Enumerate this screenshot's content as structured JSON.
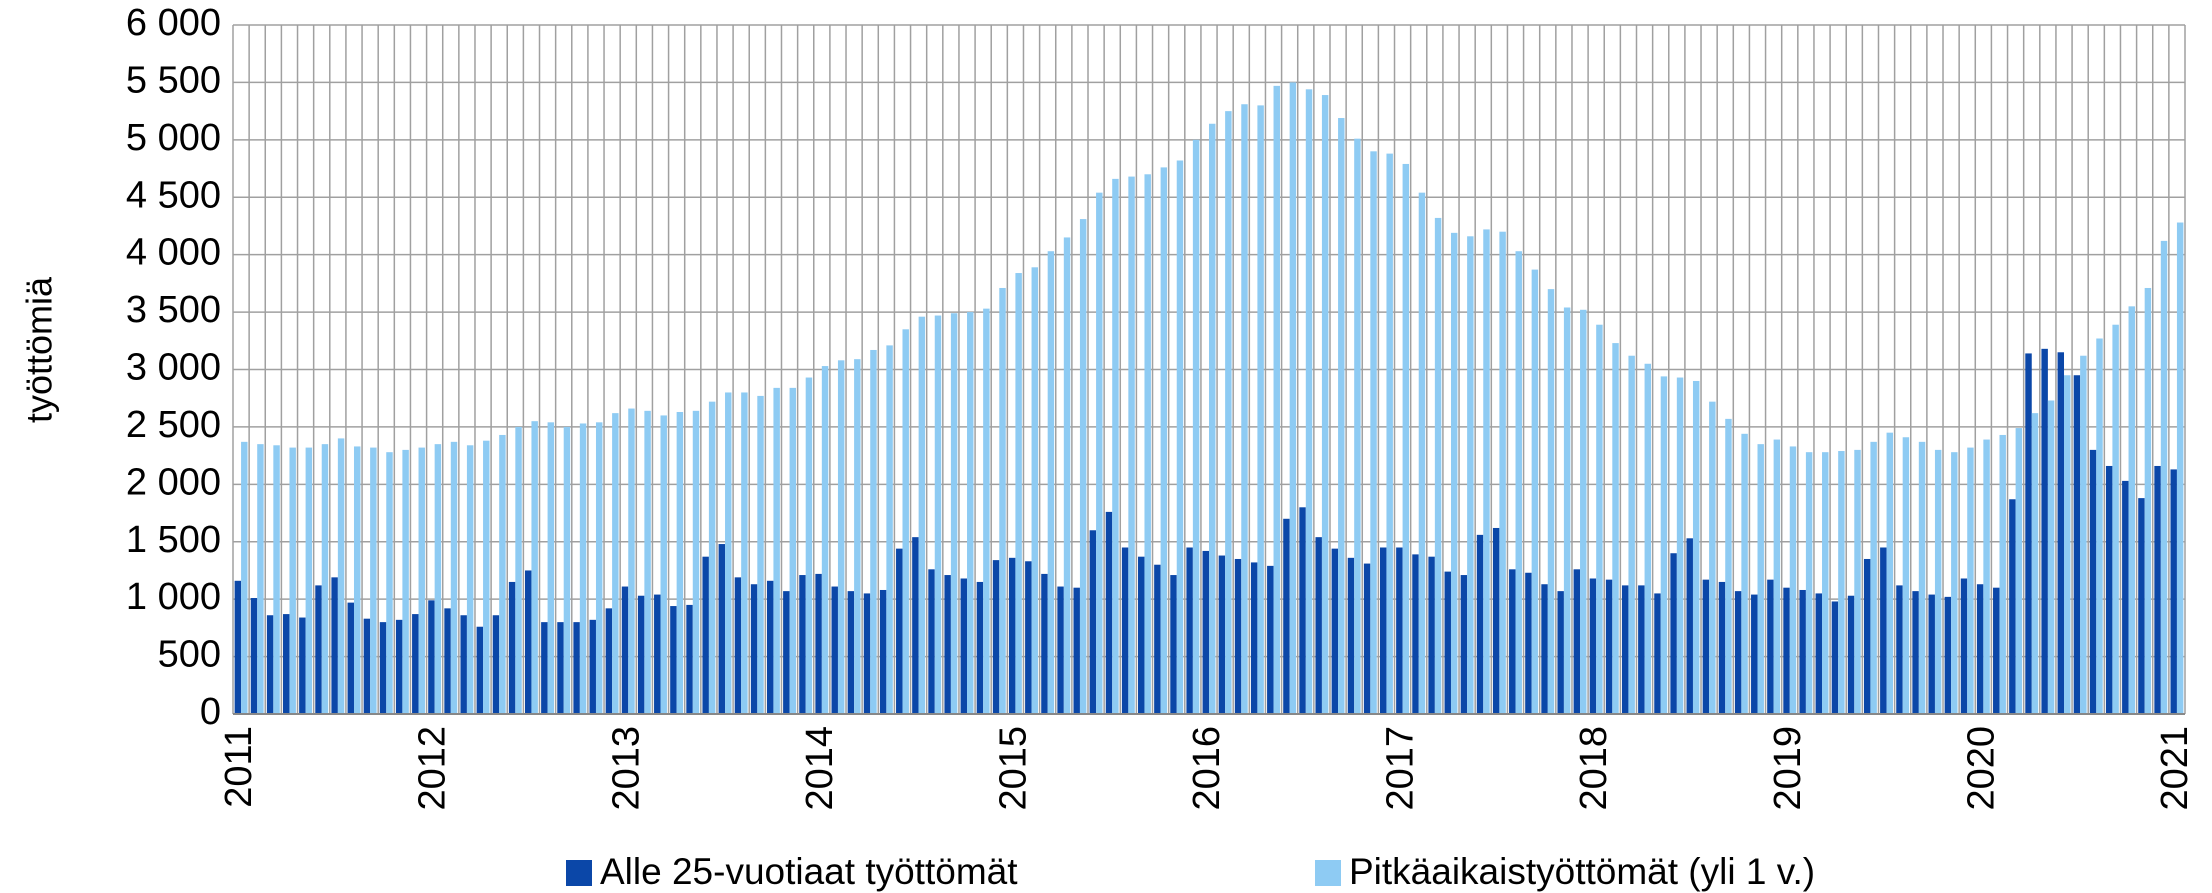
{
  "chart_data": {
    "type": "bar",
    "y_label": "työttömiä",
    "categories": [
      "2011",
      null,
      null,
      null,
      null,
      null,
      null,
      null,
      null,
      null,
      null,
      null,
      "2012",
      null,
      null,
      null,
      null,
      null,
      null,
      null,
      null,
      null,
      null,
      null,
      "2013",
      null,
      null,
      null,
      null,
      null,
      null,
      null,
      null,
      null,
      null,
      null,
      "2014",
      null,
      null,
      null,
      null,
      null,
      null,
      null,
      null,
      null,
      null,
      null,
      "2015",
      null,
      null,
      null,
      null,
      null,
      null,
      null,
      null,
      null,
      null,
      null,
      "2016",
      null,
      null,
      null,
      null,
      null,
      null,
      null,
      null,
      null,
      null,
      null,
      "2017",
      null,
      null,
      null,
      null,
      null,
      null,
      null,
      null,
      null,
      null,
      null,
      "2018",
      null,
      null,
      null,
      null,
      null,
      null,
      null,
      null,
      null,
      null,
      null,
      "2019",
      null,
      null,
      null,
      null,
      null,
      null,
      null,
      null,
      null,
      null,
      null,
      "2020",
      null,
      null,
      null,
      null,
      null,
      null,
      null,
      null,
      null,
      null,
      null,
      "2021"
    ],
    "series": [
      {
        "name": "Alle 25-vuotiaat työttömät",
        "color": "#0b47a8",
        "values": [
          1160,
          1010,
          860,
          870,
          840,
          1120,
          1190,
          970,
          830,
          800,
          820,
          870,
          990,
          920,
          860,
          760,
          860,
          1150,
          1250,
          800,
          800,
          800,
          820,
          920,
          1110,
          1030,
          1040,
          940,
          950,
          1370,
          1480,
          1190,
          1130,
          1160,
          1070,
          1210,
          1220,
          1110,
          1070,
          1050,
          1080,
          1440,
          1540,
          1260,
          1210,
          1180,
          1150,
          1340,
          1360,
          1330,
          1220,
          1110,
          1100,
          1600,
          1760,
          1450,
          1370,
          1300,
          1210,
          1450,
          1420,
          1380,
          1350,
          1320,
          1290,
          1700,
          1800,
          1540,
          1440,
          1360,
          1310,
          1450,
          1450,
          1390,
          1370,
          1240,
          1210,
          1560,
          1620,
          1260,
          1230,
          1130,
          1070,
          1260,
          1180,
          1170,
          1120,
          1120,
          1050,
          1400,
          1530,
          1170,
          1150,
          1070,
          1040,
          1170,
          1100,
          1080,
          1050,
          980,
          1030,
          1350,
          1450,
          1120,
          1070,
          1040,
          1020,
          1180,
          1130,
          1100,
          1870,
          3140,
          3180,
          3150,
          2950,
          2300,
          2160,
          2030,
          1880,
          2160,
          2130
        ]
      },
      {
        "name": "Pitkäaikaistyöttömät (yli 1 v.)",
        "color": "#8ecbf3",
        "values": [
          2370,
          2350,
          2340,
          2320,
          2320,
          2350,
          2400,
          2330,
          2320,
          2280,
          2300,
          2320,
          2350,
          2370,
          2340,
          2380,
          2430,
          2500,
          2550,
          2540,
          2500,
          2530,
          2540,
          2620,
          2660,
          2640,
          2600,
          2630,
          2640,
          2720,
          2800,
          2800,
          2770,
          2840,
          2840,
          2930,
          3030,
          3080,
          3090,
          3170,
          3210,
          3350,
          3460,
          3470,
          3490,
          3500,
          3530,
          3710,
          3840,
          3890,
          4030,
          4150,
          4310,
          4540,
          4660,
          4680,
          4700,
          4760,
          4820,
          5000,
          5140,
          5250,
          5310,
          5300,
          5470,
          5500,
          5440,
          5390,
          5190,
          5010,
          4900,
          4880,
          4790,
          4540,
          4320,
          4190,
          4160,
          4220,
          4200,
          4030,
          3870,
          3700,
          3540,
          3520,
          3390,
          3230,
          3120,
          3050,
          2940,
          2930,
          2900,
          2720,
          2570,
          2440,
          2350,
          2390,
          2330,
          2280,
          2280,
          2290,
          2300,
          2370,
          2450,
          2410,
          2370,
          2300,
          2280,
          2320,
          2390,
          2430,
          2490,
          2620,
          2730,
          2950,
          3120,
          3270,
          3390,
          3550,
          3710,
          4120,
          4280
        ]
      }
    ],
    "ylim": [
      0,
      6000
    ],
    "yticks": [
      0,
      500,
      {
        "value": 1000,
        "label": "1 000"
      },
      {
        "value": 1500,
        "label": "1 500"
      },
      {
        "value": 2000,
        "label": "2 000"
      },
      {
        "value": 2500,
        "label": "2 500"
      },
      {
        "value": 3000,
        "label": "3 000"
      },
      {
        "value": 3500,
        "label": "3 500"
      },
      {
        "value": 4000,
        "label": "4 000"
      },
      {
        "value": 4500,
        "label": "4 500"
      },
      {
        "value": 5000,
        "label": "5 000"
      },
      {
        "value": 5500,
        "label": "5 500"
      },
      {
        "value": 6000,
        "label": "6 000"
      }
    ],
    "grid": true
  }
}
